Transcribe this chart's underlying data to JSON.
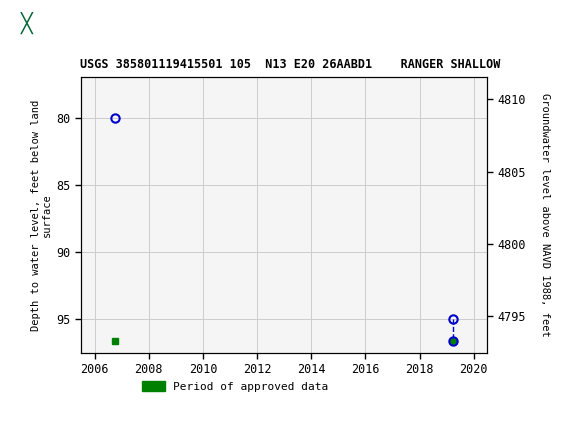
{
  "title": "USGS 385801119415501 105  N13 E20 26AABD1    RANGER SHALLOW",
  "header_bg_color": "#006633",
  "xlabel": "",
  "ylabel_left": "Depth to water level, feet below land\nsurface",
  "ylabel_right": "Groundwater level above NAVD 1988, feet",
  "xlim": [
    2005.5,
    2020.5
  ],
  "ylim_left": [
    97.5,
    77.0
  ],
  "ylim_right": [
    4792.5,
    4811.5
  ],
  "xticks": [
    2006,
    2008,
    2010,
    2012,
    2014,
    2016,
    2018,
    2020
  ],
  "yticks_left": [
    80,
    85,
    90,
    95
  ],
  "yticks_right": [
    4795,
    4800,
    4805,
    4810
  ],
  "grid_color": "#cccccc",
  "plot_bg_color": "#f5f5f5",
  "pt1_x": 2006.75,
  "pt1_y": 80.0,
  "pt2_x": 2006.75,
  "pt2_y": 96.6,
  "pt3_x": 2019.25,
  "pt3_y": 95.0,
  "pt4_x": 2019.25,
  "pt4_y": 96.6,
  "approved_color": "#008000",
  "unapproved_color": "#0000cc",
  "legend_label": "Period of approved data",
  "legend_color": "#008000"
}
